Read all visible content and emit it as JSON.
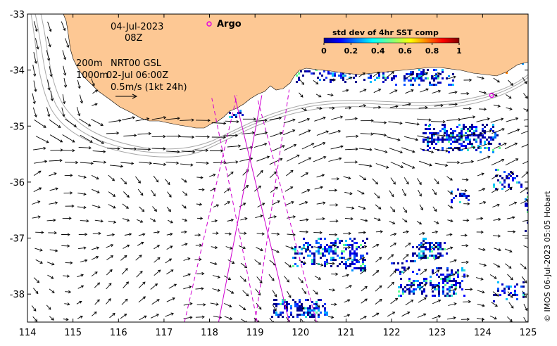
{
  "header": {
    "date": "04-Jul-2023",
    "hour": "08Z",
    "iso_200": "200m",
    "iso_1000": "1000m",
    "product": "NRT00 GSL",
    "product_time": "02-Jul 06:00Z",
    "scale_text": "0.5m/s (1kt 24h)"
  },
  "argo": {
    "label": "Argo",
    "color": "#e000e0",
    "float_pos": [
      124.2,
      -34.45
    ]
  },
  "colorbar": {
    "title": "std dev of 4hr SST comp",
    "ticks": [
      "0",
      "0.2",
      "0.4",
      "0.6",
      "0.8",
      "1"
    ],
    "range": [
      0,
      1
    ]
  },
  "credit": "© IMOS 06-Jul-2023 05:05 Hobart",
  "axes": {
    "x_ticks": [
      "114",
      "115",
      "116",
      "117",
      "118",
      "119",
      "120",
      "121",
      "122",
      "123",
      "124",
      "125"
    ],
    "y_ticks": [
      "-33",
      "-34",
      "-35",
      "-36",
      "-37",
      "-38"
    ],
    "xlim": [
      114,
      125
    ],
    "ylim": [
      -38.5,
      -33
    ]
  },
  "colors": {
    "land": "#fdc894",
    "track": "#d000d0",
    "contour": "#a8a8a8",
    "arrow": "#000000"
  },
  "satellite_tracks": [
    {
      "style": "solid",
      "from": [
        118.2,
        -38.5
      ],
      "to": [
        119.15,
        -34.45
      ]
    },
    {
      "style": "dashed",
      "from": [
        117.45,
        -38.5
      ],
      "to": [
        118.6,
        -34.45
      ]
    },
    {
      "style": "dashed",
      "from": [
        119.0,
        -38.5
      ],
      "to": [
        119.75,
        -34.35
      ]
    },
    {
      "style": "solid",
      "from": [
        119.75,
        -38.5
      ],
      "to": [
        118.55,
        -34.45
      ]
    },
    {
      "style": "dashed",
      "from": [
        119.05,
        -38.5
      ],
      "to": [
        118.05,
        -34.5
      ]
    },
    {
      "style": "dashed",
      "from": [
        120.35,
        -38.5
      ],
      "to": [
        119.05,
        -34.5
      ]
    }
  ]
}
